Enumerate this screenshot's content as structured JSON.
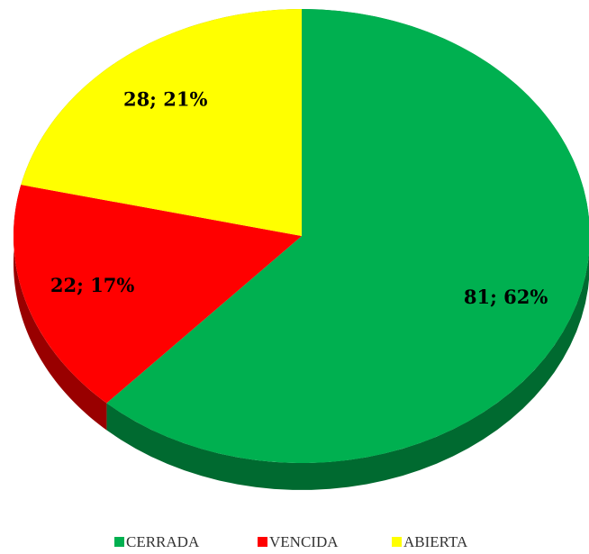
{
  "chart_data": {
    "type": "pie",
    "categories": [
      "CERRADA",
      "VENCIDA",
      "ABIERTA"
    ],
    "values": [
      81,
      22,
      28
    ],
    "value_labels": [
      "81; 62%",
      "22; 17%",
      "28; 21%"
    ],
    "colors": [
      "#00b050",
      "#ff0000",
      "#ffff00"
    ],
    "legend": "bottom"
  }
}
